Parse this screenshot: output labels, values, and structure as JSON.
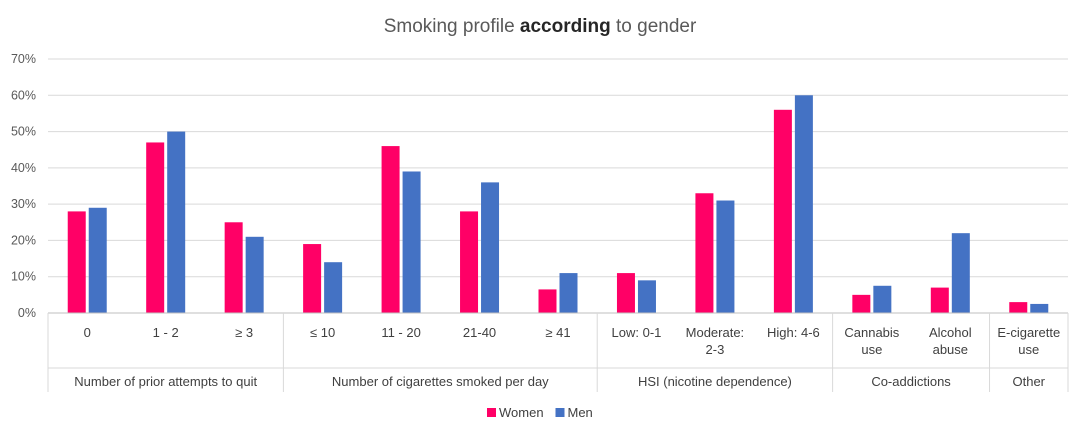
{
  "chart_data": {
    "type": "bar",
    "title_parts": [
      "Smoking profile ",
      "according",
      " to gender"
    ],
    "ylim": [
      0,
      70
    ],
    "yticks": [
      "0%",
      "10%",
      "20%",
      "30%",
      "40%",
      "50%",
      "60%",
      "70%"
    ],
    "grid": true,
    "legend_position": "bottom",
    "groups": [
      {
        "label": "Number of prior attempts to quit",
        "categories": [
          [
            "0"
          ],
          [
            "1 - 2"
          ],
          [
            "≥ 3"
          ]
        ]
      },
      {
        "label": "Number of cigarettes smoked per day",
        "categories": [
          [
            "≤ 10"
          ],
          [
            "11 - 20"
          ],
          [
            "21-40"
          ],
          [
            "≥ 41"
          ]
        ]
      },
      {
        "label": "HSI (nicotine dependence)",
        "categories": [
          [
            "Low: 0-1"
          ],
          [
            "Moderate:",
            "2-3"
          ],
          [
            "High: 4-6"
          ]
        ]
      },
      {
        "label": "Co-addictions",
        "categories": [
          [
            "Cannabis",
            "use"
          ],
          [
            "Alcohol",
            "abuse"
          ]
        ]
      },
      {
        "label": "Other",
        "categories": [
          [
            "E-cigarette",
            "use"
          ]
        ]
      }
    ],
    "series": [
      {
        "name": "Women",
        "color": "#FF0066",
        "values": [
          28,
          47,
          25,
          19,
          46,
          28,
          6.5,
          11,
          33,
          56,
          5,
          7,
          3
        ]
      },
      {
        "name": "Men",
        "color": "#4472C4",
        "values": [
          29,
          50,
          21,
          14,
          39,
          36,
          11,
          9,
          31,
          60,
          7.5,
          22,
          2.5
        ]
      }
    ]
  }
}
